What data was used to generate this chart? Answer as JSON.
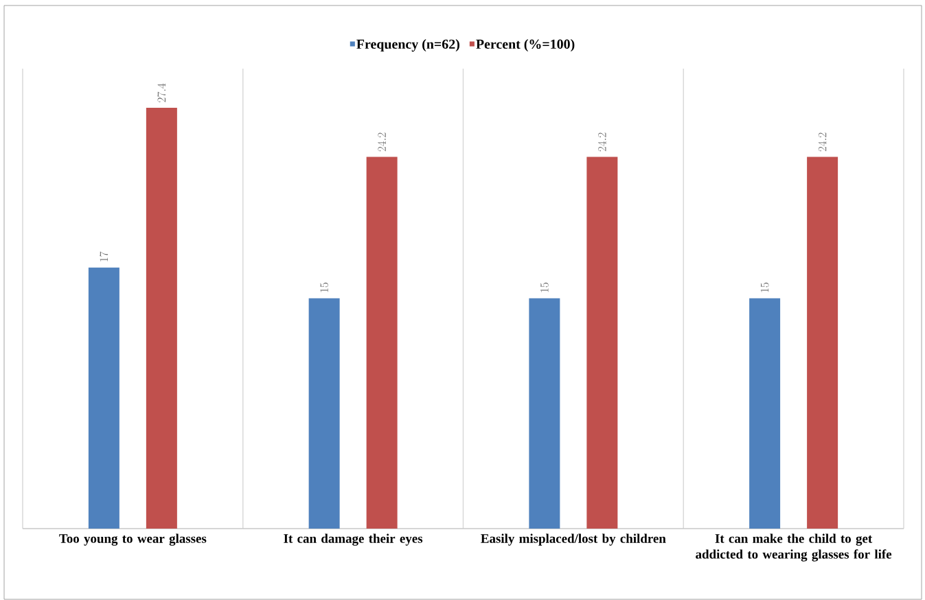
{
  "chart_data": {
    "type": "bar",
    "categories": [
      "Too young to wear glasses",
      "It can damage their eyes",
      "Easily misplaced/lost by children",
      "It can make the child to get addicted to wearing glasses for life"
    ],
    "series": [
      {
        "name": "Frequency (n=62)",
        "color": "#4f81bd",
        "values": [
          17,
          15,
          15,
          15
        ]
      },
      {
        "name": "Percent (%=100)",
        "color": "#c0504d",
        "values": [
          27.4,
          24.2,
          24.2,
          24.2
        ]
      }
    ],
    "data_labels": true,
    "grid": "x",
    "legend": "top"
  }
}
